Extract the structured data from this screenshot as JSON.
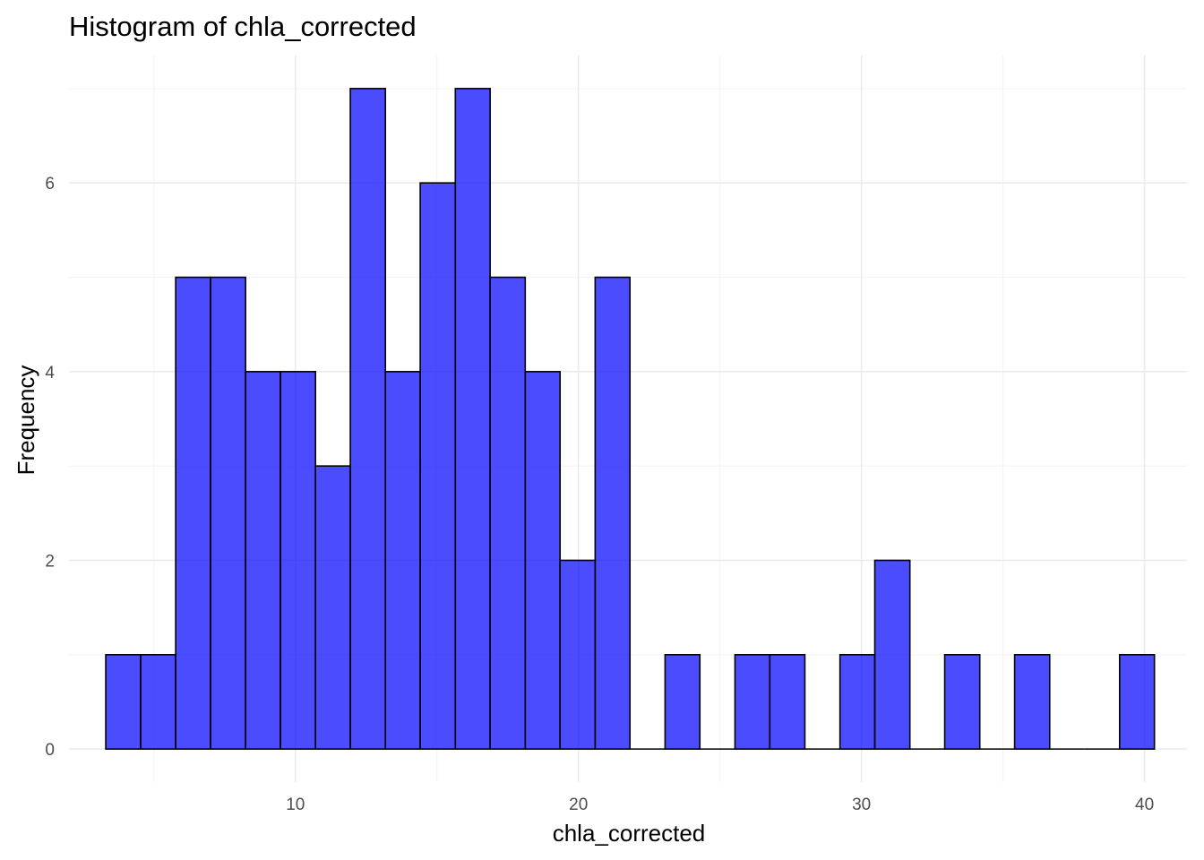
{
  "chart_data": {
    "type": "bar",
    "title": "Histogram of chla_corrected",
    "xlabel": "chla_corrected",
    "ylabel": "Frequency",
    "xlim": [
      2.0,
      41.5
    ],
    "ylim": [
      -0.35,
      7.35
    ],
    "x_ticks": [
      10,
      20,
      30,
      40
    ],
    "x_tick_labels": [
      "10",
      "20",
      "30",
      "40"
    ],
    "x_minor_ticks": [
      5,
      15,
      25,
      35
    ],
    "y_ticks": [
      0,
      2,
      4,
      6
    ],
    "y_tick_labels": [
      "0",
      "2",
      "4",
      "6"
    ],
    "y_minor_ticks": [
      1,
      3,
      5,
      7
    ],
    "bins": [
      {
        "x0": 3.3,
        "x1": 4.53,
        "count": 1
      },
      {
        "x0": 4.53,
        "x1": 5.77,
        "count": 1
      },
      {
        "x0": 5.77,
        "x1": 7.0,
        "count": 5
      },
      {
        "x0": 7.0,
        "x1": 8.24,
        "count": 5
      },
      {
        "x0": 8.24,
        "x1": 9.47,
        "count": 4
      },
      {
        "x0": 9.47,
        "x1": 10.71,
        "count": 4
      },
      {
        "x0": 10.71,
        "x1": 11.94,
        "count": 3
      },
      {
        "x0": 11.94,
        "x1": 13.18,
        "count": 7
      },
      {
        "x0": 13.18,
        "x1": 14.41,
        "count": 4
      },
      {
        "x0": 14.41,
        "x1": 15.65,
        "count": 6
      },
      {
        "x0": 15.65,
        "x1": 16.88,
        "count": 7
      },
      {
        "x0": 16.88,
        "x1": 18.12,
        "count": 5
      },
      {
        "x0": 18.12,
        "x1": 19.35,
        "count": 4
      },
      {
        "x0": 19.35,
        "x1": 20.59,
        "count": 2
      },
      {
        "x0": 20.59,
        "x1": 21.82,
        "count": 5
      },
      {
        "x0": 21.82,
        "x1": 23.06,
        "count": 0
      },
      {
        "x0": 23.06,
        "x1": 24.29,
        "count": 1
      },
      {
        "x0": 24.29,
        "x1": 25.53,
        "count": 0
      },
      {
        "x0": 25.53,
        "x1": 26.76,
        "count": 1
      },
      {
        "x0": 26.76,
        "x1": 28.0,
        "count": 1
      },
      {
        "x0": 28.0,
        "x1": 29.24,
        "count": 0
      },
      {
        "x0": 29.24,
        "x1": 30.47,
        "count": 1
      },
      {
        "x0": 30.47,
        "x1": 31.71,
        "count": 2
      },
      {
        "x0": 31.71,
        "x1": 32.94,
        "count": 0
      },
      {
        "x0": 32.94,
        "x1": 34.18,
        "count": 1
      },
      {
        "x0": 34.18,
        "x1": 35.41,
        "count": 0
      },
      {
        "x0": 35.41,
        "x1": 36.65,
        "count": 1
      },
      {
        "x0": 36.65,
        "x1": 37.88,
        "count": 0
      },
      {
        "x0": 37.88,
        "x1": 39.12,
        "count": 0
      },
      {
        "x0": 39.12,
        "x1": 40.35,
        "count": 1
      }
    ],
    "grid": true,
    "legend": "none",
    "bar_fill": "#0000ff",
    "bar_outline": "#000000",
    "grid_color": "#ebebeb",
    "text_color": "#000000",
    "tick_label_color": "#4d4d4d"
  }
}
